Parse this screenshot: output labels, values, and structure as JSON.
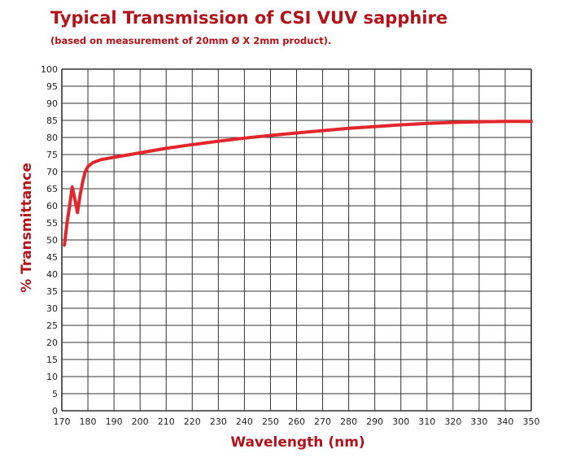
{
  "chart_data": {
    "type": "line",
    "title": "Typical Transmission of CSI VUV sapphire",
    "subtitle": "(based on measurement of 20mm Ø X 2mm product).",
    "xlabel": "Wavelength (nm)",
    "ylabel": "% Transmittance",
    "xlim": [
      170,
      350
    ],
    "ylim": [
      0,
      100
    ],
    "x_ticks": [
      170,
      180,
      190,
      200,
      210,
      220,
      230,
      240,
      250,
      260,
      270,
      280,
      290,
      300,
      310,
      320,
      330,
      340,
      350
    ],
    "y_ticks": [
      0,
      5,
      10,
      15,
      20,
      25,
      30,
      35,
      40,
      45,
      50,
      55,
      60,
      65,
      70,
      75,
      80,
      85,
      90,
      95,
      100
    ],
    "grid": true,
    "line_color": "#e3262b",
    "series": [
      {
        "x": [
          171,
          172,
          173,
          174,
          175,
          176,
          177,
          178,
          179,
          180,
          182,
          185,
          190,
          200,
          210,
          220,
          230,
          240,
          250,
          260,
          270,
          280,
          290,
          300,
          310,
          320,
          330,
          340,
          350
        ],
        "y": [
          48.5,
          55,
          60,
          65.5,
          62,
          58,
          63,
          67,
          70,
          71.5,
          72.7,
          73.5,
          74.2,
          75.5,
          76.8,
          77.9,
          78.9,
          79.8,
          80.6,
          81.3,
          82.0,
          82.7,
          83.2,
          83.7,
          84.1,
          84.4,
          84.6,
          84.7,
          84.7
        ]
      }
    ]
  },
  "colors": {
    "title": "#b3121a",
    "grid": "#333333",
    "line": "#e3262b"
  }
}
